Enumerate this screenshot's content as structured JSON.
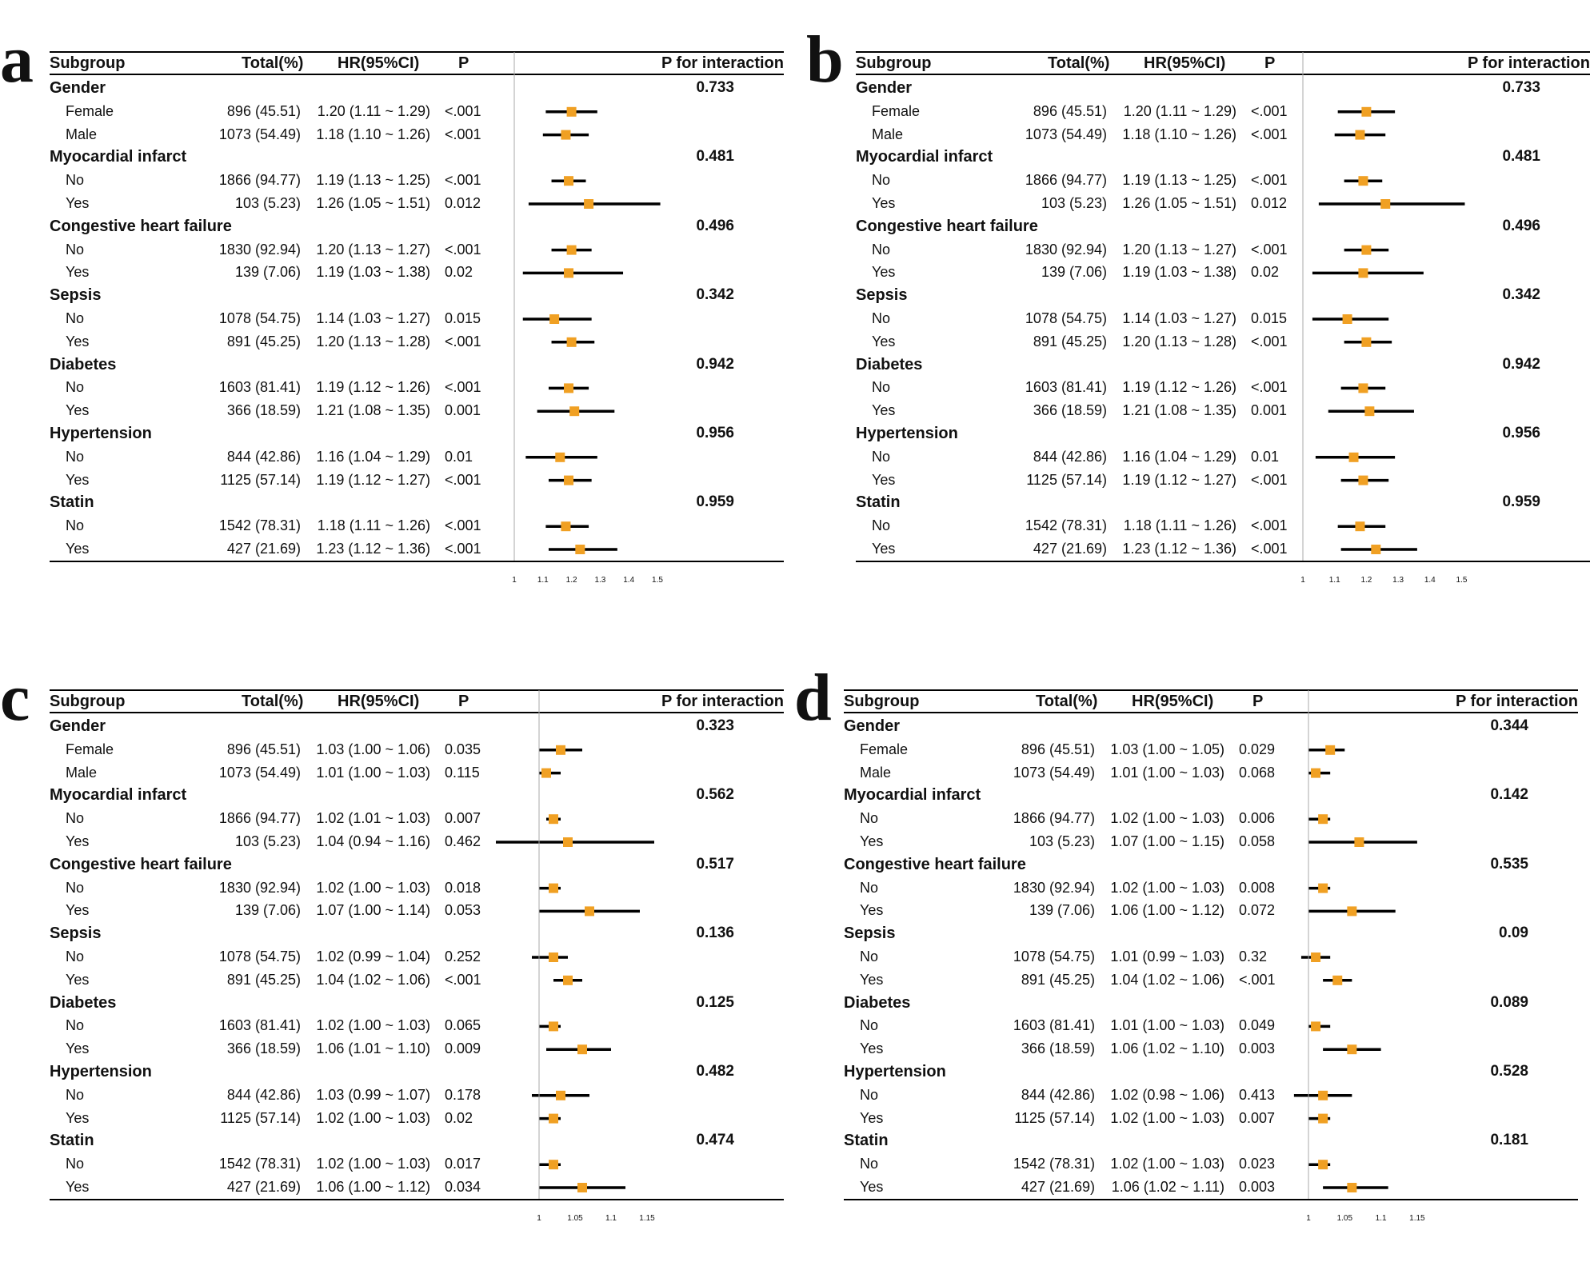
{
  "headers": {
    "subgroup": "Subgroup",
    "total": "Total(%)",
    "hr": "HR(95%CI)",
    "p": "P",
    "p_interaction": "P for interaction"
  },
  "colors": {
    "marker": "#f0a023",
    "line": "#000000",
    "refline": "#aaaaaa"
  },
  "chart_data": [
    {
      "type": "forest",
      "panel": "a",
      "xticks": [
        "1",
        "1.1",
        "1.2",
        "1.3",
        "1.4",
        "1.5"
      ],
      "xtick_values": [
        1,
        1.1,
        1.2,
        1.3,
        1.4,
        1.5
      ],
      "xlim": [
        1,
        1.5
      ],
      "ref": 1,
      "groups": [
        {
          "name": "Gender",
          "p_interaction": "0.733",
          "rows": [
            {
              "label": "Female",
              "total": "896 (45.51)",
              "hr_text": "1.20 (1.11 ~ 1.29)",
              "p": "<.001",
              "hr": 1.2,
              "lo": 1.11,
              "hi": 1.29
            },
            {
              "label": "Male",
              "total": "1073 (54.49)",
              "hr_text": "1.18 (1.10 ~ 1.26)",
              "p": "<.001",
              "hr": 1.18,
              "lo": 1.1,
              "hi": 1.26
            }
          ]
        },
        {
          "name": "Myocardial infarct",
          "p_interaction": "0.481",
          "rows": [
            {
              "label": "No",
              "total": "1866 (94.77)",
              "hr_text": "1.19 (1.13 ~ 1.25)",
              "p": "<.001",
              "hr": 1.19,
              "lo": 1.13,
              "hi": 1.25
            },
            {
              "label": "Yes",
              "total": "103 (5.23)",
              "hr_text": "1.26 (1.05 ~ 1.51)",
              "p": "0.012",
              "hr": 1.26,
              "lo": 1.05,
              "hi": 1.51
            }
          ]
        },
        {
          "name": "Congestive heart failure",
          "p_interaction": "0.496",
          "rows": [
            {
              "label": "No",
              "total": "1830 (92.94)",
              "hr_text": "1.20 (1.13 ~ 1.27)",
              "p": "<.001",
              "hr": 1.2,
              "lo": 1.13,
              "hi": 1.27
            },
            {
              "label": "Yes",
              "total": "139 (7.06)",
              "hr_text": "1.19 (1.03 ~ 1.38)",
              "p": "0.02",
              "hr": 1.19,
              "lo": 1.03,
              "hi": 1.38
            }
          ]
        },
        {
          "name": "Sepsis",
          "p_interaction": "0.342",
          "rows": [
            {
              "label": "No",
              "total": "1078 (54.75)",
              "hr_text": "1.14 (1.03 ~ 1.27)",
              "p": "0.015",
              "hr": 1.14,
              "lo": 1.03,
              "hi": 1.27
            },
            {
              "label": "Yes",
              "total": "891 (45.25)",
              "hr_text": "1.20 (1.13 ~ 1.28)",
              "p": "<.001",
              "hr": 1.2,
              "lo": 1.13,
              "hi": 1.28
            }
          ]
        },
        {
          "name": "Diabetes",
          "p_interaction": "0.942",
          "rows": [
            {
              "label": "No",
              "total": "1603 (81.41)",
              "hr_text": "1.19 (1.12 ~ 1.26)",
              "p": "<.001",
              "hr": 1.19,
              "lo": 1.12,
              "hi": 1.26
            },
            {
              "label": "Yes",
              "total": "366 (18.59)",
              "hr_text": "1.21 (1.08 ~ 1.35)",
              "p": "0.001",
              "hr": 1.21,
              "lo": 1.08,
              "hi": 1.35
            }
          ]
        },
        {
          "name": "Hypertension",
          "p_interaction": "0.956",
          "rows": [
            {
              "label": "No",
              "total": "844 (42.86)",
              "hr_text": "1.16 (1.04 ~ 1.29)",
              "p": "0.01",
              "hr": 1.16,
              "lo": 1.04,
              "hi": 1.29
            },
            {
              "label": "Yes",
              "total": "1125 (57.14)",
              "hr_text": "1.19 (1.12 ~ 1.27)",
              "p": "<.001",
              "hr": 1.19,
              "lo": 1.12,
              "hi": 1.27
            }
          ]
        },
        {
          "name": "Statin",
          "p_interaction": "0.959",
          "rows": [
            {
              "label": "No",
              "total": "1542 (78.31)",
              "hr_text": "1.18 (1.11 ~ 1.26)",
              "p": "<.001",
              "hr": 1.18,
              "lo": 1.11,
              "hi": 1.26
            },
            {
              "label": "Yes",
              "total": "427 (21.69)",
              "hr_text": "1.23 (1.12 ~ 1.36)",
              "p": "<.001",
              "hr": 1.23,
              "lo": 1.12,
              "hi": 1.36
            }
          ]
        }
      ]
    },
    {
      "type": "forest",
      "panel": "b",
      "xticks": [
        "1",
        "1.1",
        "1.2",
        "1.3",
        "1.4",
        "1.5"
      ],
      "xtick_values": [
        1,
        1.1,
        1.2,
        1.3,
        1.4,
        1.5
      ],
      "xlim": [
        1,
        1.5
      ],
      "ref": 1,
      "groups": [
        {
          "name": "Gender",
          "p_interaction": "0.733",
          "rows": [
            {
              "label": "Female",
              "total": "896 (45.51)",
              "hr_text": "1.20 (1.11 ~ 1.29)",
              "p": "<.001",
              "hr": 1.2,
              "lo": 1.11,
              "hi": 1.29
            },
            {
              "label": "Male",
              "total": "1073 (54.49)",
              "hr_text": "1.18 (1.10 ~ 1.26)",
              "p": "<.001",
              "hr": 1.18,
              "lo": 1.1,
              "hi": 1.26
            }
          ]
        },
        {
          "name": "Myocardial infarct",
          "p_interaction": "0.481",
          "rows": [
            {
              "label": "No",
              "total": "1866 (94.77)",
              "hr_text": "1.19 (1.13 ~ 1.25)",
              "p": "<.001",
              "hr": 1.19,
              "lo": 1.13,
              "hi": 1.25
            },
            {
              "label": "Yes",
              "total": "103 (5.23)",
              "hr_text": "1.26 (1.05 ~ 1.51)",
              "p": "0.012",
              "hr": 1.26,
              "lo": 1.05,
              "hi": 1.51
            }
          ]
        },
        {
          "name": "Congestive heart failure",
          "p_interaction": "0.496",
          "rows": [
            {
              "label": "No",
              "total": "1830 (92.94)",
              "hr_text": "1.20 (1.13 ~ 1.27)",
              "p": "<.001",
              "hr": 1.2,
              "lo": 1.13,
              "hi": 1.27
            },
            {
              "label": "Yes",
              "total": "139 (7.06)",
              "hr_text": "1.19 (1.03 ~ 1.38)",
              "p": "0.02",
              "hr": 1.19,
              "lo": 1.03,
              "hi": 1.38
            }
          ]
        },
        {
          "name": "Sepsis",
          "p_interaction": "0.342",
          "rows": [
            {
              "label": "No",
              "total": "1078 (54.75)",
              "hr_text": "1.14 (1.03 ~ 1.27)",
              "p": "0.015",
              "hr": 1.14,
              "lo": 1.03,
              "hi": 1.27
            },
            {
              "label": "Yes",
              "total": "891 (45.25)",
              "hr_text": "1.20 (1.13 ~ 1.28)",
              "p": "<.001",
              "hr": 1.2,
              "lo": 1.13,
              "hi": 1.28
            }
          ]
        },
        {
          "name": "Diabetes",
          "p_interaction": "0.942",
          "rows": [
            {
              "label": "No",
              "total": "1603 (81.41)",
              "hr_text": "1.19 (1.12 ~ 1.26)",
              "p": "<.001",
              "hr": 1.19,
              "lo": 1.12,
              "hi": 1.26
            },
            {
              "label": "Yes",
              "total": "366 (18.59)",
              "hr_text": "1.21 (1.08 ~ 1.35)",
              "p": "0.001",
              "hr": 1.21,
              "lo": 1.08,
              "hi": 1.35
            }
          ]
        },
        {
          "name": "Hypertension",
          "p_interaction": "0.956",
          "rows": [
            {
              "label": "No",
              "total": "844 (42.86)",
              "hr_text": "1.16 (1.04 ~ 1.29)",
              "p": "0.01",
              "hr": 1.16,
              "lo": 1.04,
              "hi": 1.29
            },
            {
              "label": "Yes",
              "total": "1125 (57.14)",
              "hr_text": "1.19 (1.12 ~ 1.27)",
              "p": "<.001",
              "hr": 1.19,
              "lo": 1.12,
              "hi": 1.27
            }
          ]
        },
        {
          "name": "Statin",
          "p_interaction": "0.959",
          "rows": [
            {
              "label": "No",
              "total": "1542 (78.31)",
              "hr_text": "1.18 (1.11 ~ 1.26)",
              "p": "<.001",
              "hr": 1.18,
              "lo": 1.11,
              "hi": 1.26
            },
            {
              "label": "Yes",
              "total": "427 (21.69)",
              "hr_text": "1.23 (1.12 ~ 1.36)",
              "p": "<.001",
              "hr": 1.23,
              "lo": 1.12,
              "hi": 1.36
            }
          ]
        }
      ]
    },
    {
      "type": "forest",
      "panel": "c",
      "xticks": [
        "1",
        "1.05",
        "1.1",
        "1.15"
      ],
      "xtick_values": [
        1,
        1.05,
        1.1,
        1.15
      ],
      "xlim": [
        0.985,
        1.175
      ],
      "ref": 1,
      "groups": [
        {
          "name": "Gender",
          "p_interaction": "0.323",
          "rows": [
            {
              "label": "Female",
              "total": "896 (45.51)",
              "hr_text": "1.03 (1.00 ~ 1.06)",
              "p": "0.035",
              "hr": 1.03,
              "lo": 1.0,
              "hi": 1.06
            },
            {
              "label": "Male",
              "total": "1073 (54.49)",
              "hr_text": "1.01 (1.00 ~ 1.03)",
              "p": "0.115",
              "hr": 1.01,
              "lo": 1.0,
              "hi": 1.03
            }
          ]
        },
        {
          "name": "Myocardial infarct",
          "p_interaction": "0.562",
          "rows": [
            {
              "label": "No",
              "total": "1866 (94.77)",
              "hr_text": "1.02 (1.01 ~ 1.03)",
              "p": "0.007",
              "hr": 1.02,
              "lo": 1.01,
              "hi": 1.03
            },
            {
              "label": "Yes",
              "total": "103 (5.23)",
              "hr_text": "1.04 (0.94 ~ 1.16)",
              "p": "0.462",
              "hr": 1.04,
              "lo": 0.94,
              "hi": 1.16
            }
          ]
        },
        {
          "name": "Congestive heart failure",
          "p_interaction": "0.517",
          "rows": [
            {
              "label": "No",
              "total": "1830 (92.94)",
              "hr_text": "1.02 (1.00 ~ 1.03)",
              "p": "0.018",
              "hr": 1.02,
              "lo": 1.0,
              "hi": 1.03
            },
            {
              "label": "Yes",
              "total": "139 (7.06)",
              "hr_text": "1.07 (1.00 ~ 1.14)",
              "p": "0.053",
              "hr": 1.07,
              "lo": 1.0,
              "hi": 1.14
            }
          ]
        },
        {
          "name": "Sepsis",
          "p_interaction": "0.136",
          "rows": [
            {
              "label": "No",
              "total": "1078 (54.75)",
              "hr_text": "1.02 (0.99 ~ 1.04)",
              "p": "0.252",
              "hr": 1.02,
              "lo": 0.99,
              "hi": 1.04
            },
            {
              "label": "Yes",
              "total": "891 (45.25)",
              "hr_text": "1.04 (1.02 ~ 1.06)",
              "p": "<.001",
              "hr": 1.04,
              "lo": 1.02,
              "hi": 1.06
            }
          ]
        },
        {
          "name": "Diabetes",
          "p_interaction": "0.125",
          "rows": [
            {
              "label": "No",
              "total": "1603 (81.41)",
              "hr_text": "1.02 (1.00 ~ 1.03)",
              "p": "0.065",
              "hr": 1.02,
              "lo": 1.0,
              "hi": 1.03
            },
            {
              "label": "Yes",
              "total": "366 (18.59)",
              "hr_text": "1.06 (1.01 ~ 1.10)",
              "p": "0.009",
              "hr": 1.06,
              "lo": 1.01,
              "hi": 1.1
            }
          ]
        },
        {
          "name": "Hypertension",
          "p_interaction": "0.482",
          "rows": [
            {
              "label": "No",
              "total": "844 (42.86)",
              "hr_text": "1.03 (0.99 ~ 1.07)",
              "p": "0.178",
              "hr": 1.03,
              "lo": 0.99,
              "hi": 1.07
            },
            {
              "label": "Yes",
              "total": "1125 (57.14)",
              "hr_text": "1.02 (1.00 ~ 1.03)",
              "p": "0.02",
              "hr": 1.02,
              "lo": 1.0,
              "hi": 1.03
            }
          ]
        },
        {
          "name": "Statin",
          "p_interaction": "0.474",
          "rows": [
            {
              "label": "No",
              "total": "1542 (78.31)",
              "hr_text": "1.02 (1.00 ~ 1.03)",
              "p": "0.017",
              "hr": 1.02,
              "lo": 1.0,
              "hi": 1.03
            },
            {
              "label": "Yes",
              "total": "427 (21.69)",
              "hr_text": "1.06 (1.00 ~ 1.12)",
              "p": "0.034",
              "hr": 1.06,
              "lo": 1.0,
              "hi": 1.12
            }
          ]
        }
      ]
    },
    {
      "type": "forest",
      "panel": "d",
      "xticks": [
        "1",
        "1.05",
        "1.1",
        "1.15"
      ],
      "xtick_values": [
        1,
        1.05,
        1.1,
        1.15
      ],
      "xlim": [
        0.985,
        1.175
      ],
      "ref": 1,
      "groups": [
        {
          "name": "Gender",
          "p_interaction": "0.344",
          "rows": [
            {
              "label": "Female",
              "total": "896 (45.51)",
              "hr_text": "1.03 (1.00 ~ 1.05)",
              "p": "0.029",
              "hr": 1.03,
              "lo": 1.0,
              "hi": 1.05
            },
            {
              "label": "Male",
              "total": "1073 (54.49)",
              "hr_text": "1.01 (1.00 ~ 1.03)",
              "p": "0.068",
              "hr": 1.01,
              "lo": 1.0,
              "hi": 1.03
            }
          ]
        },
        {
          "name": "Myocardial infarct",
          "p_interaction": "0.142",
          "rows": [
            {
              "label": "No",
              "total": "1866 (94.77)",
              "hr_text": "1.02 (1.00 ~ 1.03)",
              "p": "0.006",
              "hr": 1.02,
              "lo": 1.0,
              "hi": 1.03
            },
            {
              "label": "Yes",
              "total": "103 (5.23)",
              "hr_text": "1.07 (1.00 ~ 1.15)",
              "p": "0.058",
              "hr": 1.07,
              "lo": 1.0,
              "hi": 1.15
            }
          ]
        },
        {
          "name": "Congestive heart failure",
          "p_interaction": "0.535",
          "rows": [
            {
              "label": "No",
              "total": "1830 (92.94)",
              "hr_text": "1.02 (1.00 ~ 1.03)",
              "p": "0.008",
              "hr": 1.02,
              "lo": 1.0,
              "hi": 1.03
            },
            {
              "label": "Yes",
              "total": "139 (7.06)",
              "hr_text": "1.06 (1.00 ~ 1.12)",
              "p": "0.072",
              "hr": 1.06,
              "lo": 1.0,
              "hi": 1.12
            }
          ]
        },
        {
          "name": "Sepsis",
          "p_interaction": "0.09",
          "rows": [
            {
              "label": "No",
              "total": "1078 (54.75)",
              "hr_text": "1.01 (0.99 ~ 1.03)",
              "p": "0.32",
              "hr": 1.01,
              "lo": 0.99,
              "hi": 1.03
            },
            {
              "label": "Yes",
              "total": "891 (45.25)",
              "hr_text": "1.04 (1.02 ~ 1.06)",
              "p": "<.001",
              "hr": 1.04,
              "lo": 1.02,
              "hi": 1.06
            }
          ]
        },
        {
          "name": "Diabetes",
          "p_interaction": "0.089",
          "rows": [
            {
              "label": "No",
              "total": "1603 (81.41)",
              "hr_text": "1.01 (1.00 ~ 1.03)",
              "p": "0.049",
              "hr": 1.01,
              "lo": 1.0,
              "hi": 1.03
            },
            {
              "label": "Yes",
              "total": "366 (18.59)",
              "hr_text": "1.06 (1.02 ~ 1.10)",
              "p": "0.003",
              "hr": 1.06,
              "lo": 1.02,
              "hi": 1.1
            }
          ]
        },
        {
          "name": "Hypertension",
          "p_interaction": "0.528",
          "rows": [
            {
              "label": "No",
              "total": "844 (42.86)",
              "hr_text": "1.02 (0.98 ~ 1.06)",
              "p": "0.413",
              "hr": 1.02,
              "lo": 0.98,
              "hi": 1.06
            },
            {
              "label": "Yes",
              "total": "1125 (57.14)",
              "hr_text": "1.02 (1.00 ~ 1.03)",
              "p": "0.007",
              "hr": 1.02,
              "lo": 1.0,
              "hi": 1.03
            }
          ]
        },
        {
          "name": "Statin",
          "p_interaction": "0.181",
          "rows": [
            {
              "label": "No",
              "total": "1542 (78.31)",
              "hr_text": "1.02 (1.00 ~ 1.03)",
              "p": "0.023",
              "hr": 1.02,
              "lo": 1.0,
              "hi": 1.03
            },
            {
              "label": "Yes",
              "total": "427 (21.69)",
              "hr_text": "1.06 (1.02 ~ 1.11)",
              "p": "0.003",
              "hr": 1.06,
              "lo": 1.02,
              "hi": 1.11
            }
          ]
        }
      ]
    }
  ]
}
